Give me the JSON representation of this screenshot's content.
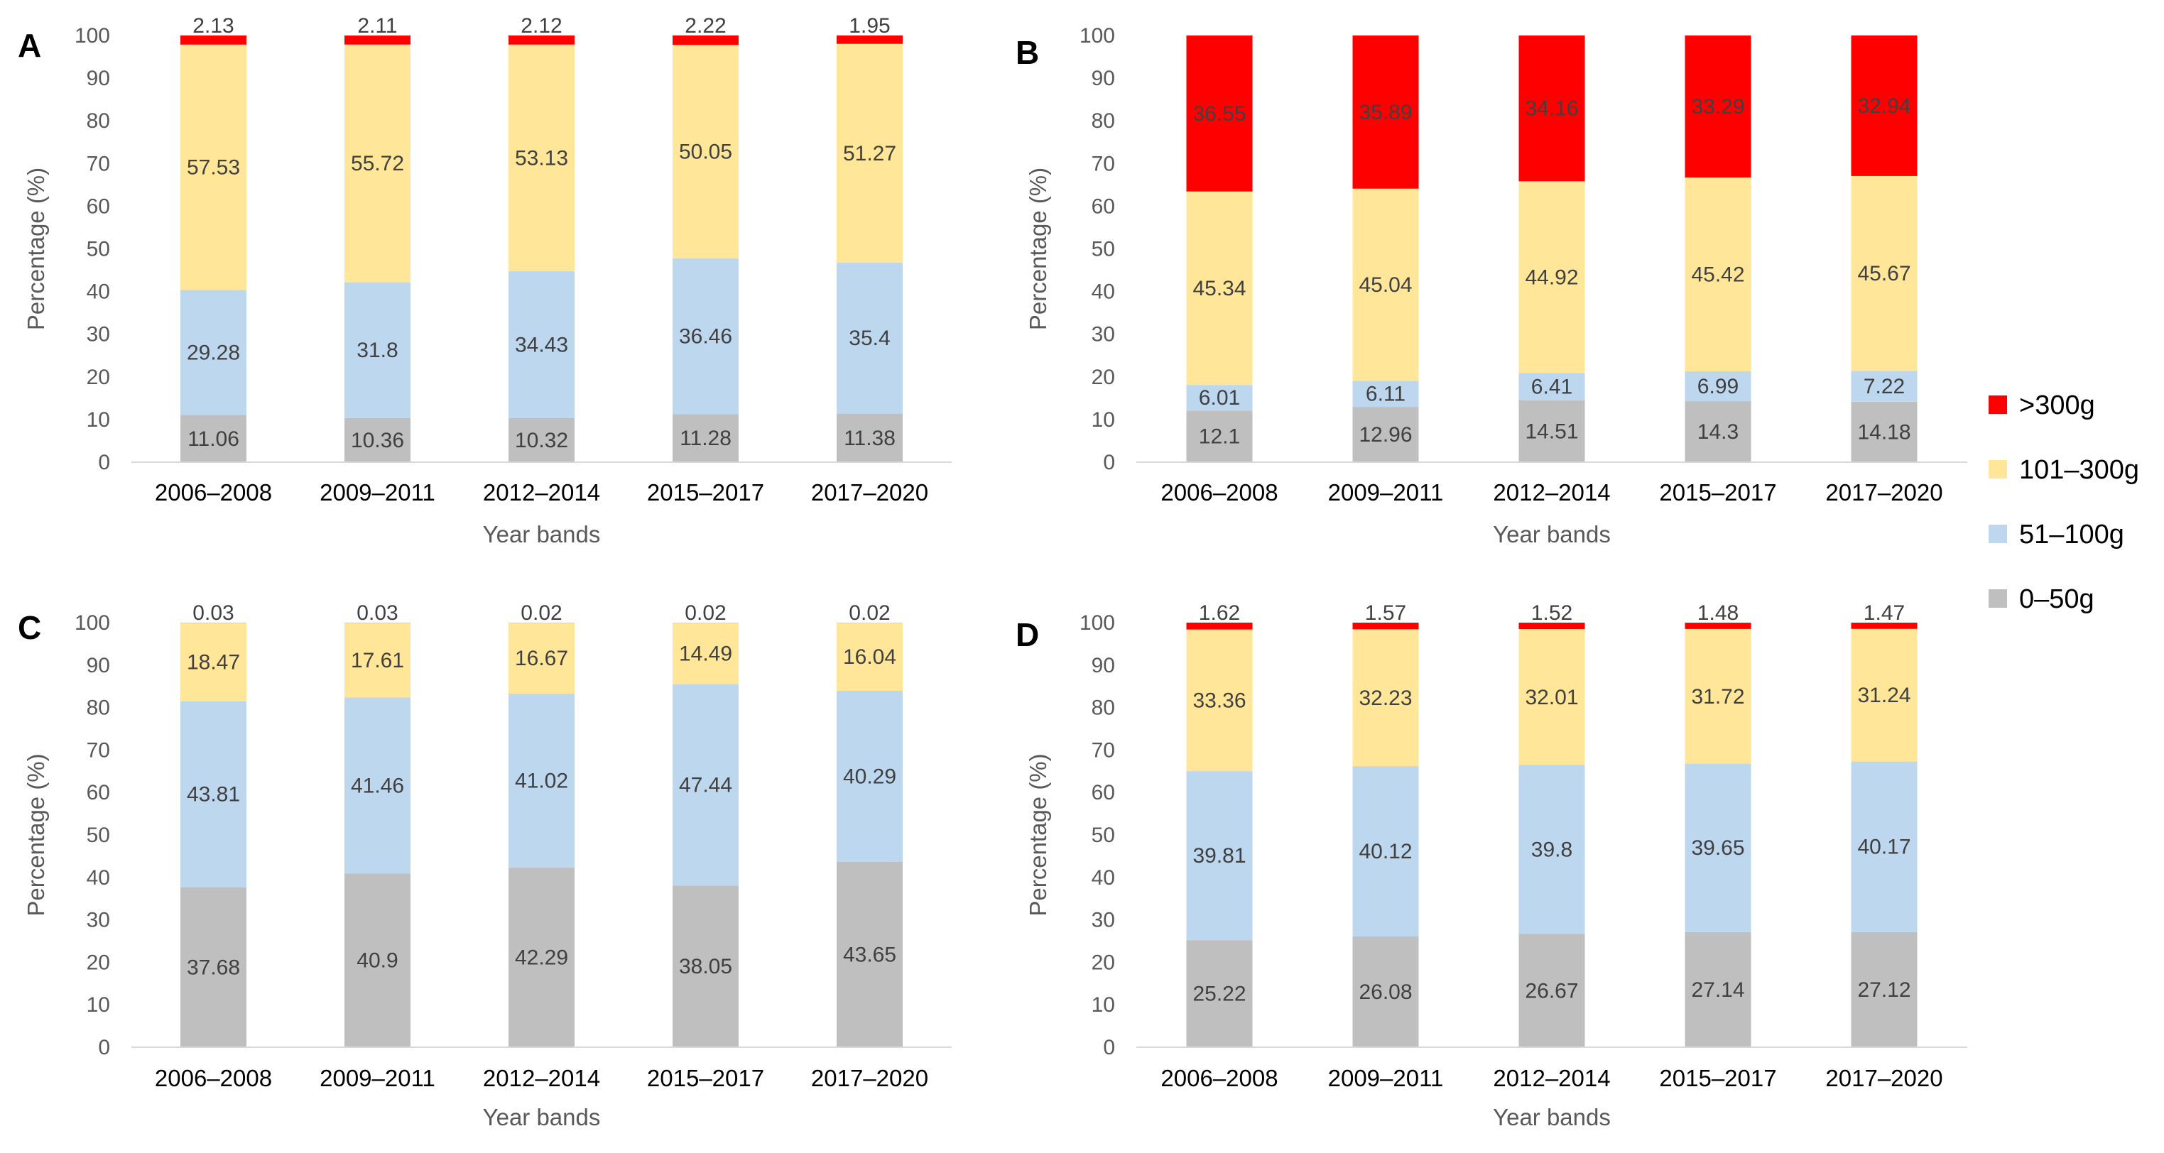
{
  "colors": {
    "0-50g": "#bfbfbf",
    "51-100g": "#bdd7ee",
    "101-300g": "#ffe699",
    ">300g": "#ff0000"
  },
  "legend": [
    {
      "key": ">300g",
      "label": ">300g"
    },
    {
      "key": "101-300g",
      "label": "101–300g"
    },
    {
      "key": "51-100g",
      "label": "51–100g"
    },
    {
      "key": "0-50g",
      "label": "0–50g"
    }
  ],
  "chart_data": [
    {
      "type": "bar",
      "panel": "A",
      "stacked": true,
      "categories": [
        "2006–2008",
        "2009–2011",
        "2012–2014",
        "2015–2017",
        "2017–2020"
      ],
      "xlabel": "Year bands",
      "ylabel": "Percentage (%)",
      "ylim": [
        0,
        100
      ],
      "yticks": [
        0,
        10,
        20,
        30,
        40,
        50,
        60,
        70,
        80,
        90,
        100
      ],
      "series": [
        {
          "name": "0–50g",
          "key": "0-50g",
          "values": [
            11.06,
            10.36,
            10.32,
            11.28,
            11.38
          ]
        },
        {
          "name": "51–100g",
          "key": "51-100g",
          "values": [
            29.28,
            31.8,
            34.43,
            36.46,
            35.4
          ]
        },
        {
          "name": "101–300g",
          "key": "101-300g",
          "values": [
            57.53,
            55.72,
            53.13,
            50.05,
            51.27
          ]
        },
        {
          "name": ">300g",
          "key": ">300g",
          "values": [
            2.13,
            2.11,
            2.12,
            2.22,
            1.95
          ]
        }
      ]
    },
    {
      "type": "bar",
      "panel": "B",
      "stacked": true,
      "categories": [
        "2006–2008",
        "2009–2011",
        "2012–2014",
        "2015–2017",
        "2017–2020"
      ],
      "xlabel": "Year bands",
      "ylabel": "Percentage (%)",
      "ylim": [
        0,
        100
      ],
      "yticks": [
        0,
        10,
        20,
        30,
        40,
        50,
        60,
        70,
        80,
        90,
        100
      ],
      "series": [
        {
          "name": "0–50g",
          "key": "0-50g",
          "values": [
            12.1,
            12.96,
            14.51,
            14.3,
            14.18
          ]
        },
        {
          "name": "51–100g",
          "key": "51-100g",
          "values": [
            6.01,
            6.11,
            6.41,
            6.99,
            7.22
          ]
        },
        {
          "name": "101–300g",
          "key": "101-300g",
          "values": [
            45.34,
            45.04,
            44.92,
            45.42,
            45.67
          ]
        },
        {
          "name": ">300g",
          "key": ">300g",
          "values": [
            36.55,
            35.89,
            34.16,
            33.29,
            32.94
          ]
        }
      ]
    },
    {
      "type": "bar",
      "panel": "C",
      "stacked": true,
      "categories": [
        "2006–2008",
        "2009–2011",
        "2012–2014",
        "2015–2017",
        "2017–2020"
      ],
      "xlabel": "Year bands",
      "ylabel": "Percentage (%)",
      "ylim": [
        0,
        100
      ],
      "yticks": [
        0,
        10,
        20,
        30,
        40,
        50,
        60,
        70,
        80,
        90,
        100
      ],
      "series": [
        {
          "name": "0–50g",
          "key": "0-50g",
          "values": [
            37.68,
            40.9,
            42.29,
            38.05,
            43.65
          ]
        },
        {
          "name": "51–100g",
          "key": "51-100g",
          "values": [
            43.81,
            41.46,
            41.02,
            47.44,
            40.29
          ]
        },
        {
          "name": "101–300g",
          "key": "101-300g",
          "values": [
            18.47,
            17.61,
            16.67,
            14.49,
            16.04
          ]
        },
        {
          "name": ">300g",
          "key": ">300g",
          "values": [
            0.03,
            0.03,
            0.02,
            0.02,
            0.02
          ]
        }
      ]
    },
    {
      "type": "bar",
      "panel": "D",
      "stacked": true,
      "categories": [
        "2006–2008",
        "2009–2011",
        "2012–2014",
        "2015–2017",
        "2017–2020"
      ],
      "xlabel": "Year bands",
      "ylabel": "Percentage (%)",
      "ylim": [
        0,
        100
      ],
      "yticks": [
        0,
        10,
        20,
        30,
        40,
        50,
        60,
        70,
        80,
        90,
        100
      ],
      "series": [
        {
          "name": "0–50g",
          "key": "0-50g",
          "values": [
            25.22,
            26.08,
            26.67,
            27.14,
            27.12
          ]
        },
        {
          "name": "51–100g",
          "key": "51-100g",
          "values": [
            39.81,
            40.12,
            39.8,
            39.65,
            40.17
          ]
        },
        {
          "name": "101–300g",
          "key": "101-300g",
          "values": [
            33.36,
            32.23,
            32.01,
            31.72,
            31.24
          ]
        },
        {
          "name": ">300g",
          "key": ">300g",
          "values": [
            1.62,
            1.57,
            1.52,
            1.48,
            1.47
          ]
        }
      ]
    }
  ]
}
